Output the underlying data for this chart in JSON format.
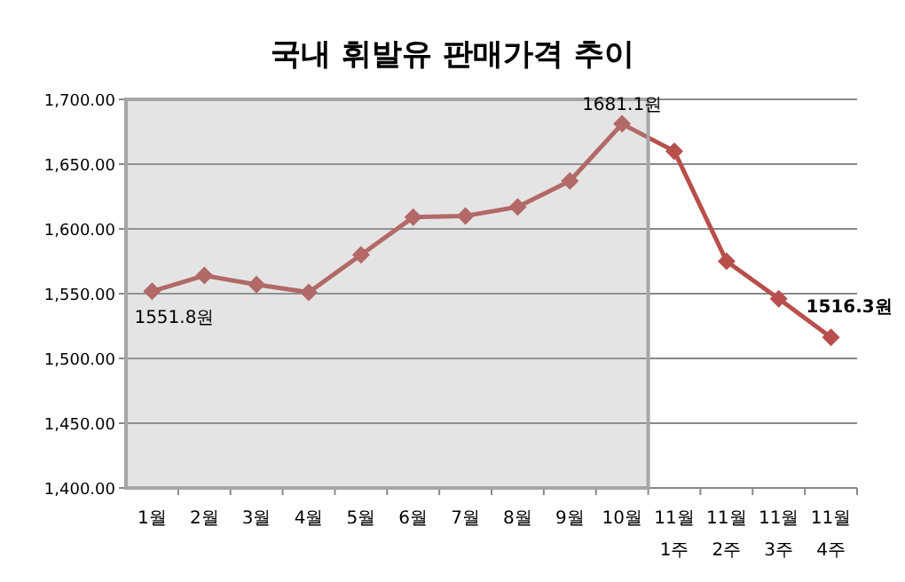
{
  "chart_data": {
    "type": "line",
    "title": "국내 휘발유 판매가격 추이",
    "categories": [
      "1월",
      "2월",
      "3월",
      "4월",
      "5월",
      "6월",
      "7월",
      "8월",
      "9월",
      "10월",
      "11월\n1주",
      "11월\n2주",
      "11월\n3주",
      "11월\n4주"
    ],
    "series": [
      {
        "color": "#b84f4c",
        "values": [
          1551.8,
          1564,
          1557,
          1551,
          1580,
          1609,
          1610,
          1617,
          1637,
          1681.1,
          1660,
          1575,
          1546,
          1516.3
        ]
      }
    ],
    "marker": "diamond",
    "line_style": "solid",
    "grid": "y",
    "ylim": [
      1400,
      1700
    ],
    "yticks": [
      {
        "value": 1400,
        "label": "1,400.00"
      },
      {
        "value": 1450,
        "label": "1,450.00"
      },
      {
        "value": 1500,
        "label": "1,500.00"
      },
      {
        "value": 1550,
        "label": "1,550.00"
      },
      {
        "value": 1600,
        "label": "1,600.00"
      },
      {
        "value": 1650,
        "label": "1,650.00"
      },
      {
        "value": 1700,
        "label": "1,700.00"
      }
    ],
    "bands": [
      {
        "axis": "x",
        "from": "1월",
        "to": "10월",
        "color": "#a6a6a6"
      }
    ],
    "annotations": [
      {
        "text": "1551.8원",
        "x": "1월",
        "y": 1551.8
      },
      {
        "text": "1681.1원",
        "x": "10월",
        "y": 1681.1
      },
      {
        "text": "1516.3원",
        "x": "11월\n4주",
        "y": 1516.3
      }
    ]
  }
}
